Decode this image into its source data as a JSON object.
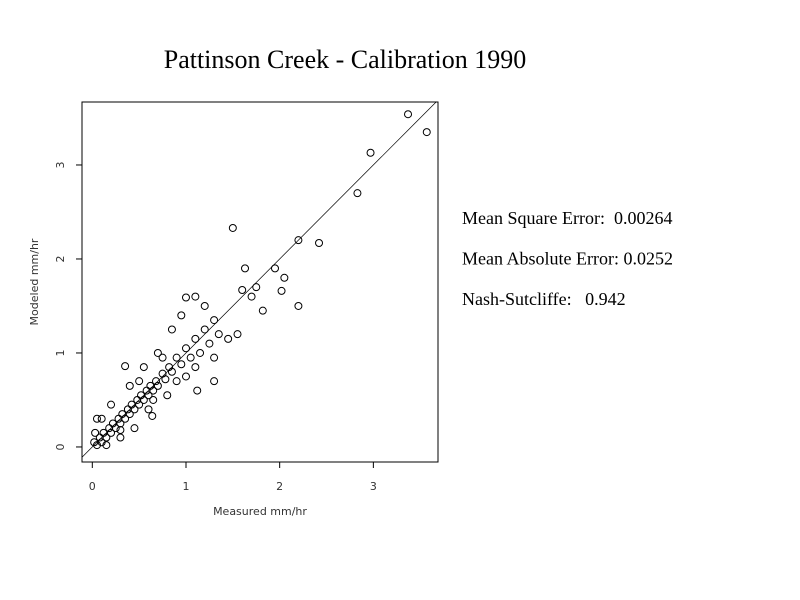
{
  "chart_data": {
    "type": "scatter",
    "title": "Pattinson Creek - Calibration 1990",
    "x_label": "Measured  mm/hr",
    "y_label": "Modeled  mm/hr",
    "xlim": [
      -0.11,
      3.69
    ],
    "ylim": [
      -0.16,
      3.67
    ],
    "xticks": [
      0,
      1,
      2,
      3
    ],
    "yticks": [
      0,
      1,
      2,
      3
    ],
    "color": "#000000",
    "annotations": [
      "Mean Square Error:  0.00264",
      "Mean Absolute Error: 0.0252",
      "Nash-Sutcliffe:   0.942"
    ],
    "x": [
      0.02,
      0.05,
      0.08,
      0.1,
      0.12,
      0.15,
      0.18,
      0.2,
      0.22,
      0.25,
      0.28,
      0.3,
      0.32,
      0.35,
      0.38,
      0.4,
      0.42,
      0.45,
      0.48,
      0.5,
      0.52,
      0.55,
      0.58,
      0.6,
      0.62,
      0.65,
      0.68,
      0.7,
      0.75,
      0.78,
      0.82,
      0.85,
      0.9,
      0.95,
      1.0,
      1.05,
      1.1,
      1.15,
      1.2,
      1.25,
      1.3,
      1.35,
      0.1,
      0.3,
      0.2,
      0.45,
      0.4,
      0.6,
      0.55,
      0.8,
      0.7,
      1.0,
      0.85,
      1.1,
      0.95,
      1.3,
      1.2,
      1.45,
      1.1,
      1.55,
      0.35,
      0.64,
      1.3,
      1.12,
      0.3,
      0.03,
      0.15,
      0.05,
      1.0,
      1.63,
      1.6,
      1.82,
      1.5,
      1.95,
      2.05,
      2.02,
      1.75,
      1.7,
      2.2,
      2.42,
      2.2,
      2.83,
      2.97,
      3.37,
      3.57,
      0.5,
      0.65,
      0.75,
      0.9
    ],
    "y": [
      0.05,
      0.02,
      0.1,
      0.05,
      0.15,
      0.1,
      0.2,
      0.15,
      0.25,
      0.2,
      0.3,
      0.25,
      0.35,
      0.3,
      0.4,
      0.35,
      0.45,
      0.4,
      0.5,
      0.45,
      0.55,
      0.5,
      0.6,
      0.55,
      0.65,
      0.6,
      0.7,
      0.65,
      0.78,
      0.72,
      0.85,
      0.8,
      0.95,
      0.88,
      1.05,
      0.95,
      1.15,
      1.0,
      1.25,
      1.1,
      1.35,
      1.2,
      0.3,
      0.1,
      0.45,
      0.2,
      0.65,
      0.4,
      0.85,
      0.55,
      1.0,
      0.75,
      1.25,
      0.85,
      1.4,
      0.95,
      1.5,
      1.15,
      1.6,
      1.2,
      0.86,
      0.33,
      0.7,
      0.6,
      0.18,
      0.15,
      0.02,
      0.3,
      1.59,
      1.9,
      1.67,
      1.45,
      2.33,
      1.9,
      1.8,
      1.66,
      1.7,
      1.6,
      2.2,
      2.17,
      1.5,
      2.7,
      3.13,
      3.54,
      3.35,
      0.7,
      0.5,
      0.95,
      0.7
    ]
  }
}
